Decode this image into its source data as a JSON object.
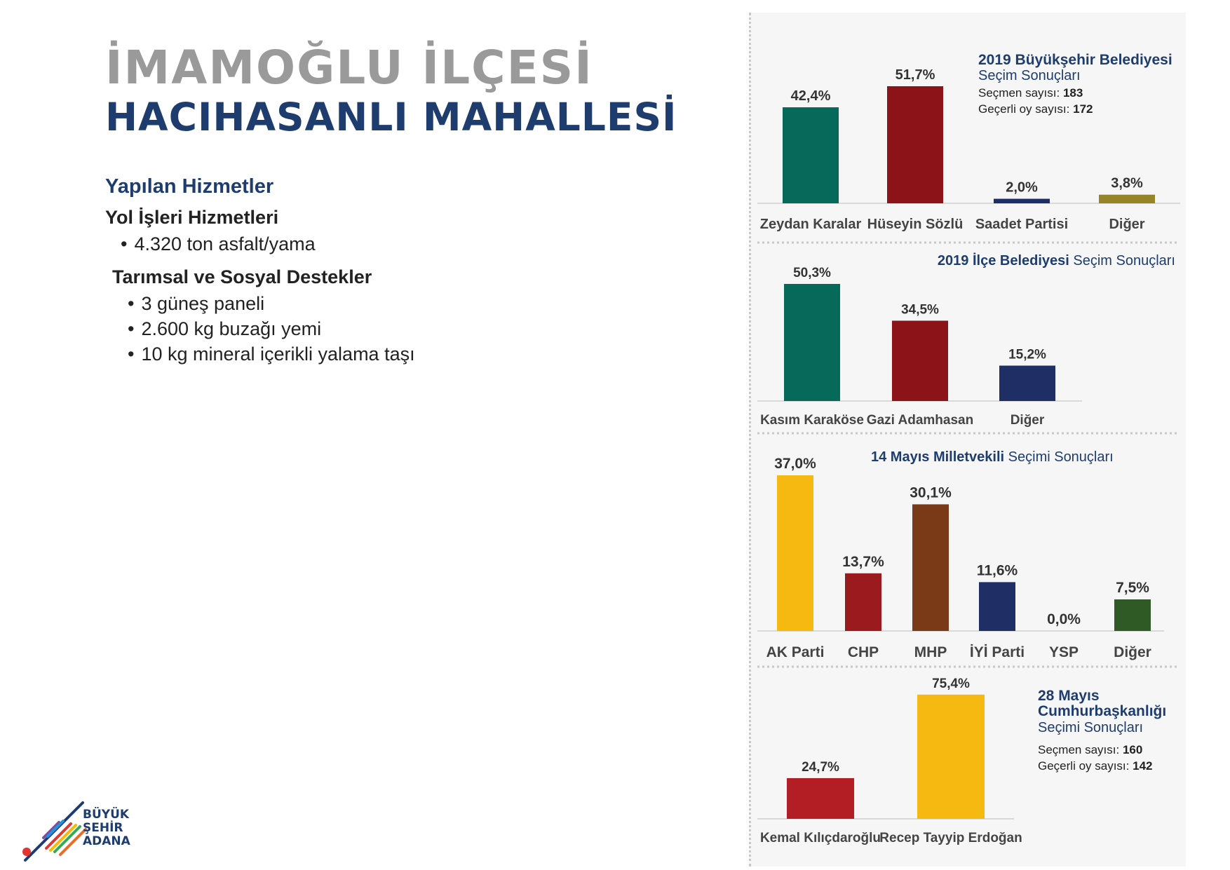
{
  "page": {
    "title_line1": "İMAMOĞLU İLÇESİ",
    "title_line2": "HACIHASANLI MAHALLESİ"
  },
  "services": {
    "heading": "Yapılan Hizmetler",
    "groups": [
      {
        "title": "Yol İşleri Hizmetleri",
        "items": [
          "4.320 ton asfalt/yama"
        ]
      },
      {
        "title": "Tarımsal ve Sosyal Destekler",
        "items": [
          "3 güneş paneli",
          "2.600 kg buzağı yemi",
          "10 kg mineral içerikli yalama taşı"
        ]
      }
    ]
  },
  "logo": {
    "text_lines": [
      "BÜYÜK",
      "ŞEHİR",
      "ADANA"
    ]
  },
  "chart_data": [
    {
      "type": "bar",
      "title_bold": "2019 Büyükşehir Belediyesi",
      "title_rest": "Seçim Sonuçları",
      "info": [
        {
          "label": "Seçmen sayısı:",
          "value": "183"
        },
        {
          "label": "Geçerli oy sayısı:",
          "value": "172"
        }
      ],
      "categories": [
        "Zeydan Karalar",
        "Hüseyin Sözlü",
        "Saadet Partisi",
        "Diğer"
      ],
      "values": [
        42.4,
        51.7,
        2.0,
        3.8
      ],
      "value_labels": [
        "42,4%",
        "51,7%",
        "2,0%",
        "3,8%"
      ],
      "colors": [
        "#07695a",
        "#8c1418",
        "#1f2f66",
        "#978428"
      ]
    },
    {
      "type": "bar",
      "title_bold": "2019 İlçe Belediyesi",
      "title_rest": "Seçim Sonuçları",
      "info": [],
      "categories": [
        "Kasım Karaköse",
        "Gazi Adamhasan",
        "Diğer"
      ],
      "values": [
        50.3,
        34.5,
        15.2
      ],
      "value_labels": [
        "50,3%",
        "34,5%",
        "15,2%"
      ],
      "colors": [
        "#07695a",
        "#8c1418",
        "#1f2f66"
      ]
    },
    {
      "type": "bar",
      "title_bold": "14 Mayıs Milletvekili",
      "title_rest": "Seçimi Sonuçları",
      "info": [],
      "categories": [
        "AK Parti",
        "CHP",
        "MHP",
        "İYİ Parti",
        "YSP",
        "Diğer"
      ],
      "values": [
        37.0,
        13.7,
        30.1,
        11.6,
        0.0,
        7.5
      ],
      "value_labels": [
        "37,0%",
        "13,7%",
        "30,1%",
        "11,6%",
        "0,0%",
        "7,5%"
      ],
      "colors": [
        "#f6b912",
        "#9b1a1e",
        "#7b3a17",
        "#1f2f66",
        "#6a2f8a",
        "#305a25"
      ]
    },
    {
      "type": "bar",
      "title_bold": "28 Mayıs Cumhurbaşkanlığı",
      "title_rest": "Seçimi Sonuçları",
      "info": [
        {
          "label": "Seçmen sayısı:",
          "value": "160"
        },
        {
          "label": "Geçerli oy sayısı:",
          "value": "142"
        }
      ],
      "categories": [
        "Kemal Kılıçdaroğlu",
        "Recep Tayyip Erdoğan"
      ],
      "values": [
        24.7,
        75.4
      ],
      "value_labels": [
        "24,7%",
        "75,4%"
      ],
      "colors": [
        "#b21e23",
        "#f6b912"
      ]
    }
  ]
}
